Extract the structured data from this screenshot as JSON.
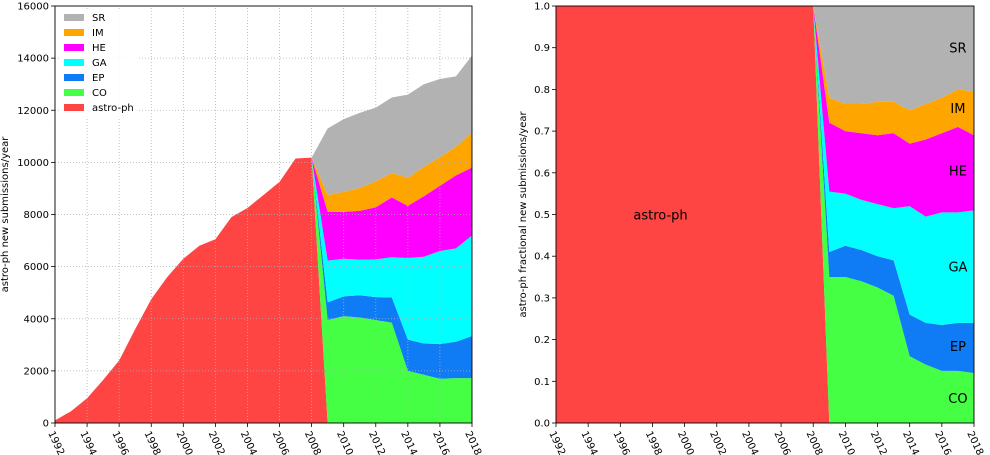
{
  "chart_data": [
    {
      "type": "area",
      "stacked": true,
      "ylabel": "astro-ph new submissions/year",
      "xlim": [
        1992,
        2018
      ],
      "ylim": [
        0,
        16000
      ],
      "xticks": [
        "1992",
        "1994",
        "1996",
        "1998",
        "2000",
        "2002",
        "2004",
        "2006",
        "2008",
        "2010",
        "2012",
        "2014",
        "2016",
        "2018"
      ],
      "yticks": [
        "0",
        "2000",
        "4000",
        "6000",
        "8000",
        "10000",
        "12000",
        "14000",
        "16000"
      ],
      "grid": true,
      "legend_position": "top-left",
      "legend": [
        "SR",
        "IM",
        "HE",
        "GA",
        "EP",
        "CO",
        "astro-ph"
      ],
      "x": [
        1992,
        1993,
        1994,
        1995,
        1996,
        1997,
        1998,
        1999,
        2000,
        2001,
        2002,
        2003,
        2004,
        2005,
        2006,
        2007,
        2008,
        2009,
        2010,
        2011,
        2012,
        2013,
        2014,
        2015,
        2016,
        2017,
        2018
      ],
      "series": [
        {
          "name": "astro-ph",
          "color": "#ff4444",
          "values": [
            100,
            450,
            950,
            1650,
            2400,
            3600,
            4750,
            5600,
            6300,
            6800,
            7050,
            7900,
            8250,
            8750,
            9250,
            10150,
            10180,
            0,
            0,
            0,
            0,
            0,
            0,
            0,
            0,
            0,
            0
          ]
        },
        {
          "name": "CO",
          "color": "#44ff44",
          "values": [
            0,
            0,
            0,
            0,
            0,
            0,
            0,
            0,
            0,
            0,
            0,
            0,
            0,
            0,
            0,
            0,
            0,
            3950,
            4100,
            4050,
            3950,
            3850,
            2000,
            1850,
            1700,
            1720,
            1720
          ]
        },
        {
          "name": "EP",
          "color": "#0f7cf5",
          "values": [
            0,
            0,
            0,
            0,
            0,
            0,
            0,
            0,
            0,
            0,
            0,
            0,
            0,
            0,
            0,
            0,
            0,
            680,
            760,
            850,
            880,
            970,
            1200,
            1200,
            1330,
            1400,
            1620
          ]
        },
        {
          "name": "GA",
          "color": "#00ffff",
          "values": [
            0,
            0,
            0,
            0,
            0,
            0,
            0,
            0,
            0,
            0,
            0,
            0,
            0,
            0,
            0,
            0,
            0,
            1600,
            1440,
            1370,
            1450,
            1540,
            3130,
            3330,
            3570,
            3580,
            3860
          ]
        },
        {
          "name": "HE",
          "color": "#ff00ff",
          "values": [
            0,
            0,
            0,
            0,
            0,
            0,
            0,
            0,
            0,
            0,
            0,
            0,
            0,
            0,
            0,
            0,
            0,
            1870,
            1800,
            1870,
            2000,
            2290,
            2000,
            2320,
            2500,
            2800,
            2600
          ]
        },
        {
          "name": "IM",
          "color": "#ffa500",
          "values": [
            0,
            0,
            0,
            0,
            0,
            0,
            0,
            0,
            0,
            0,
            0,
            0,
            0,
            0,
            0,
            0,
            0,
            650,
            770,
            880,
            990,
            940,
            1080,
            1130,
            1100,
            1100,
            1330
          ]
        },
        {
          "name": "SR",
          "color": "#b2b2b2",
          "values": [
            0,
            0,
            0,
            0,
            0,
            0,
            0,
            0,
            0,
            0,
            0,
            0,
            0,
            0,
            0,
            0,
            0,
            2550,
            2790,
            2880,
            2830,
            2900,
            3190,
            3170,
            3000,
            2700,
            2970
          ]
        }
      ]
    },
    {
      "type": "area",
      "stacked": true,
      "ylabel": "astro-ph fractional new submissions/year",
      "xlim": [
        1992,
        2018
      ],
      "ylim": [
        0,
        1
      ],
      "xticks": [
        "1992",
        "1994",
        "1996",
        "1998",
        "2000",
        "2002",
        "2004",
        "2006",
        "2008",
        "2010",
        "2012",
        "2014",
        "2016",
        "2018"
      ],
      "yticks": [
        "0.0",
        "0.1",
        "0.2",
        "0.3",
        "0.4",
        "0.5",
        "0.6",
        "0.7",
        "0.8",
        "0.9",
        "1.0"
      ],
      "grid": false,
      "labels": [
        "astro-ph",
        "CO",
        "EP",
        "GA",
        "HE",
        "IM",
        "SR"
      ],
      "x": [
        1992,
        1993,
        1994,
        1995,
        1996,
        1997,
        1998,
        1999,
        2000,
        2001,
        2002,
        2003,
        2004,
        2005,
        2006,
        2007,
        2008,
        2009,
        2010,
        2011,
        2012,
        2013,
        2014,
        2015,
        2016,
        2017,
        2018
      ],
      "series": [
        {
          "name": "astro-ph",
          "color": "#ff4444",
          "values": [
            1,
            1,
            1,
            1,
            1,
            1,
            1,
            1,
            1,
            1,
            1,
            1,
            1,
            1,
            1,
            1,
            1,
            0,
            0,
            0,
            0,
            0,
            0,
            0,
            0,
            0,
            0
          ]
        },
        {
          "name": "CO",
          "color": "#44ff44",
          "values": [
            0,
            0,
            0,
            0,
            0,
            0,
            0,
            0,
            0,
            0,
            0,
            0,
            0,
            0,
            0,
            0,
            0,
            0.35,
            0.35,
            0.34,
            0.325,
            0.305,
            0.16,
            0.14,
            0.125,
            0.125,
            0.12
          ]
        },
        {
          "name": "EP",
          "color": "#0f7cf5",
          "values": [
            0,
            0,
            0,
            0,
            0,
            0,
            0,
            0,
            0,
            0,
            0,
            0,
            0,
            0,
            0,
            0,
            0,
            0.06,
            0.075,
            0.075,
            0.075,
            0.085,
            0.1,
            0.1,
            0.11,
            0.115,
            0.12
          ]
        },
        {
          "name": "GA",
          "color": "#00ffff",
          "values": [
            0,
            0,
            0,
            0,
            0,
            0,
            0,
            0,
            0,
            0,
            0,
            0,
            0,
            0,
            0,
            0,
            0,
            0.145,
            0.125,
            0.12,
            0.125,
            0.125,
            0.26,
            0.255,
            0.27,
            0.265,
            0.27
          ]
        },
        {
          "name": "HE",
          "color": "#ff00ff",
          "values": [
            0,
            0,
            0,
            0,
            0,
            0,
            0,
            0,
            0,
            0,
            0,
            0,
            0,
            0,
            0,
            0,
            0,
            0.165,
            0.15,
            0.16,
            0.165,
            0.18,
            0.15,
            0.185,
            0.19,
            0.205,
            0.18
          ]
        },
        {
          "name": "IM",
          "color": "#ffa500",
          "values": [
            0,
            0,
            0,
            0,
            0,
            0,
            0,
            0,
            0,
            0,
            0,
            0,
            0,
            0,
            0,
            0,
            0,
            0.06,
            0.065,
            0.07,
            0.08,
            0.075,
            0.08,
            0.085,
            0.085,
            0.09,
            0.105
          ]
        },
        {
          "name": "SR",
          "color": "#b2b2b2",
          "values": [
            0,
            0,
            0,
            0,
            0,
            0,
            0,
            0,
            0,
            0,
            0,
            0,
            0,
            0,
            0,
            0,
            0,
            0.22,
            0.235,
            0.235,
            0.23,
            0.23,
            0.25,
            0.235,
            0.22,
            0.2,
            0.205
          ]
        }
      ]
    }
  ]
}
